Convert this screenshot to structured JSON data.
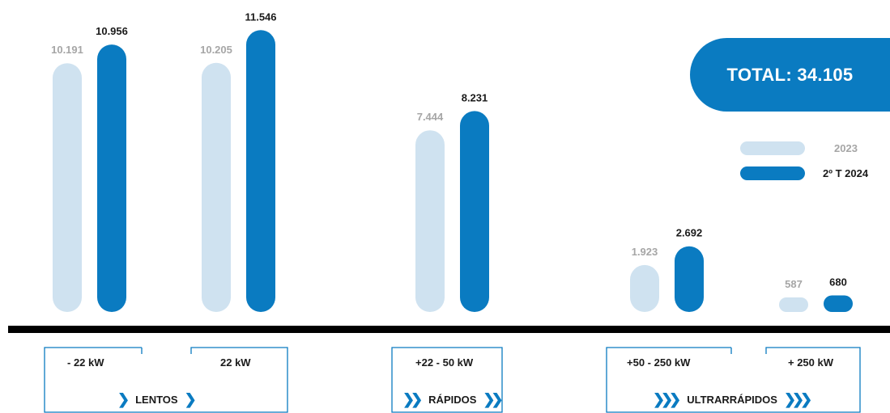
{
  "chart_data": {
    "type": "bar",
    "categories": [
      "- 22 kW",
      "22 kW",
      "+22 - 50 kW",
      "+50 - 250 kW",
      "+ 250 kW"
    ],
    "series": [
      {
        "name": "2023",
        "values": [
          10191,
          10205,
          7444,
          1923,
          587
        ],
        "labels": [
          "10.191",
          "10.205",
          "7.444",
          "1.923",
          "587"
        ],
        "color": "#cfe2f0",
        "label_color": "#a6a6a6"
      },
      {
        "name": "2º T 2024",
        "values": [
          10956,
          11546,
          8231,
          2692,
          680
        ],
        "labels": [
          "10.956",
          "11.546",
          "8.231",
          "2.692",
          "680"
        ],
        "color": "#0a7bc1",
        "label_color": "#1a1a1a"
      }
    ],
    "groups": [
      {
        "label": "LENTOS",
        "chevrons": "❯",
        "categories": [
          "- 22 kW",
          "22 kW"
        ]
      },
      {
        "label": "RÁPIDOS",
        "chevrons": "❯❯",
        "categories": [
          "+22 - 50 kW"
        ]
      },
      {
        "label": "ULTRARRÁPIDOS",
        "chevrons": "❯❯❯",
        "categories": [
          "+50 - 250 kW",
          "+ 250 kW"
        ]
      }
    ],
    "total_label": "TOTAL: 34.105",
    "legend_position": "right",
    "grid": false
  },
  "legend": {
    "item_2023": "2023",
    "item_2024": "2º T 2024"
  },
  "colors": {
    "accent": "#0a7bc1",
    "light": "#cfe2f0",
    "axis": "#000000"
  }
}
